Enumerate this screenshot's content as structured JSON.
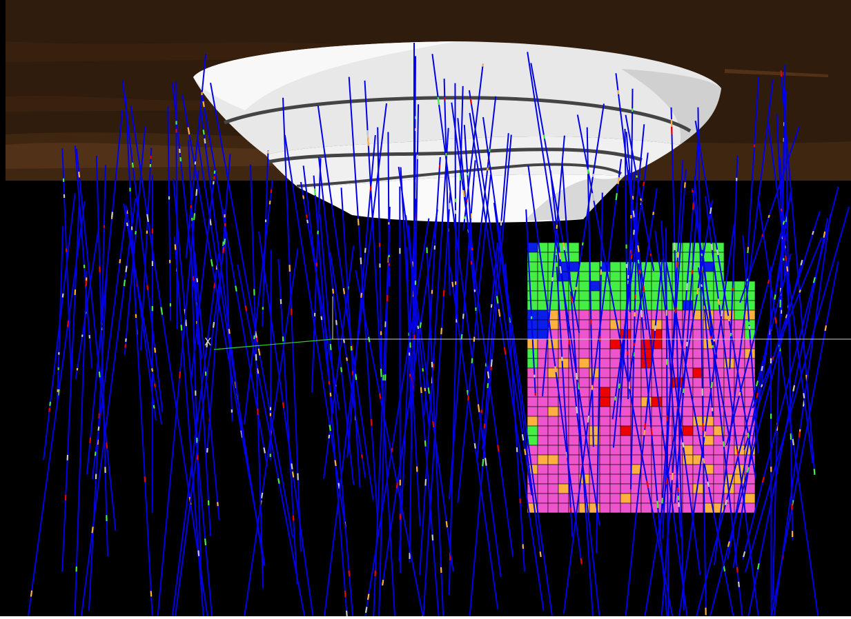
{
  "scene": {
    "axis_label": "X",
    "colors": {
      "sky": "#2f1c0c",
      "topography_band": "#4a2d12",
      "background": "#000000",
      "pit_shell": "#f2f2f2",
      "drillhole": "#0000e6",
      "axis_line": "#2fd12f",
      "grid_line": "#cfcfcf",
      "block_green": "#44ee44",
      "block_magenta": "#ee55cc",
      "block_orange": "#ffb040",
      "block_blue": "#0a1ee8",
      "block_red": "#ee0000"
    },
    "layers": [
      "topography",
      "pit-shell",
      "block-model",
      "drillholes",
      "axis"
    ]
  }
}
